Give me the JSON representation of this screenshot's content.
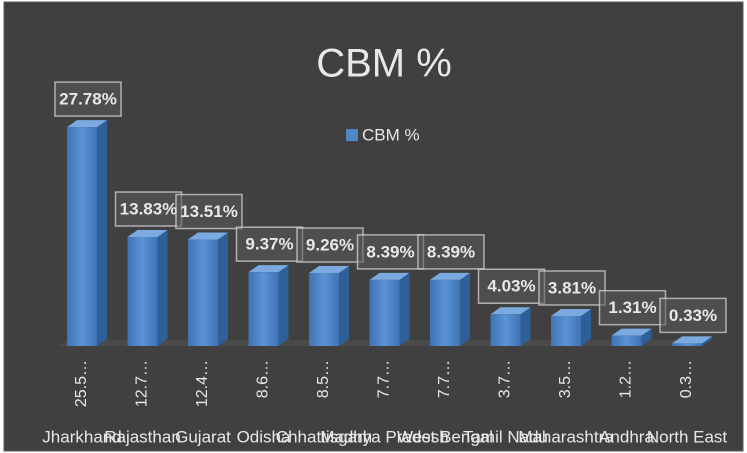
{
  "chart_data": {
    "type": "bar3d",
    "title": "CBM %",
    "legend": "CBM %",
    "categories": [
      "Jharkhand",
      "Rajasthan",
      "Gujarat",
      "Odisha",
      "Chhattisgarh",
      "Madhya Pradesh",
      "West Bengal",
      "Tamil Nadu",
      "Maharashtra",
      "Andhra",
      "North East"
    ],
    "subcategories": [
      "25.5…",
      "12.7…",
      "12.4…",
      "8.6…",
      "8.5…",
      "7.7…",
      "7.7…",
      "3.7…",
      "3.5…",
      "1.2…",
      "0.3…"
    ],
    "series": [
      {
        "name": "CBM %",
        "color": "#4f86c6",
        "values": [
          27.78,
          13.83,
          13.51,
          9.37,
          9.26,
          8.39,
          8.39,
          4.03,
          3.81,
          1.31,
          0.33
        ],
        "value_labels": [
          "27.78%",
          "13.83%",
          "13.51%",
          "9.37%",
          "9.26%",
          "8.39%",
          "8.39%",
          "4.03%",
          "3.81%",
          "1.31%",
          "0.33%"
        ]
      }
    ]
  }
}
